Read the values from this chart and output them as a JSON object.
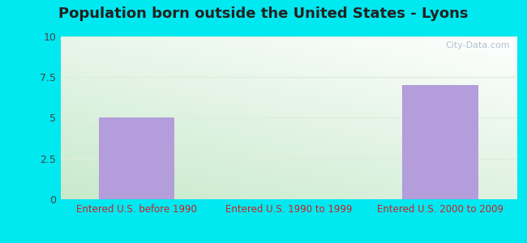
{
  "title": "Population born outside the United States - Lyons",
  "categories": [
    "Entered U.S. before 1990",
    "Entered U.S. 1990 to 1999",
    "Entered U.S. 2000 to 2009"
  ],
  "values": [
    5.0,
    0.0,
    7.0
  ],
  "bar_color": "#b39ddb",
  "ylim": [
    0,
    10
  ],
  "yticks": [
    0,
    2.5,
    5,
    7.5,
    10
  ],
  "ytick_labels": [
    "0",
    "2.5",
    "5",
    "7.5",
    "10"
  ],
  "xlabel_color": "#cc2222",
  "title_fontsize": 13,
  "title_fontweight": "bold",
  "title_color": "#222222",
  "background_outer": "#00e8f0",
  "grid_color": "#ddeedc",
  "watermark": "City-Data.com",
  "watermark_color": "#aabbcc",
  "tick_label_color": "#444444",
  "tick_label_fontsize": 9,
  "xlabel_fontsize": 8.5
}
